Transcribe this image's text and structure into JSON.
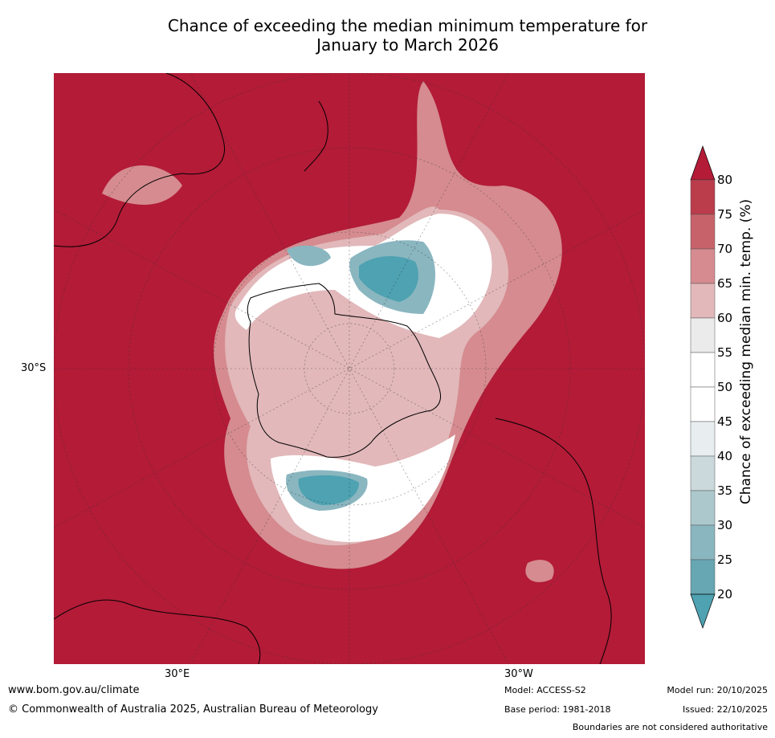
{
  "title_line1": "Chance of exceeding the median minimum temperature for",
  "title_line2": "January to March 2026",
  "map": {
    "lat_label": "30°S",
    "lon_label_left": "30°E",
    "lon_label_right": "30°W",
    "background_color": "#b31b37"
  },
  "colorbar": {
    "label": "Chance of exceeding median min. temp. (%)",
    "ticks": [
      "80",
      "75",
      "70",
      "65",
      "60",
      "55",
      "50",
      "45",
      "40",
      "35",
      "30",
      "25",
      "20"
    ],
    "bands": [
      "#b31b37",
      "#bb3c4b",
      "#c8626a",
      "#d58b8f",
      "#e2b8ba",
      "#ebebeb",
      "#ffffff",
      "#ffffff",
      "#e8eef0",
      "#ccd9dc",
      "#acc8cd",
      "#8ab6c0",
      "#67a6b3"
    ],
    "over_color": "#b31b37",
    "under_color": "#4ea2b1"
  },
  "footer": {
    "url": "www.bom.gov.au/climate",
    "copyright": "© Commonwealth of Australia 2025, Australian Bureau of Meteorology",
    "model": "Model: ACCESS-S2",
    "base_period": "Base period: 1981-2018",
    "model_run": "Model run: 20/10/2025",
    "issued": "Issued: 22/10/2025",
    "disclaimer": "Boundaries are not considered authoritative"
  }
}
